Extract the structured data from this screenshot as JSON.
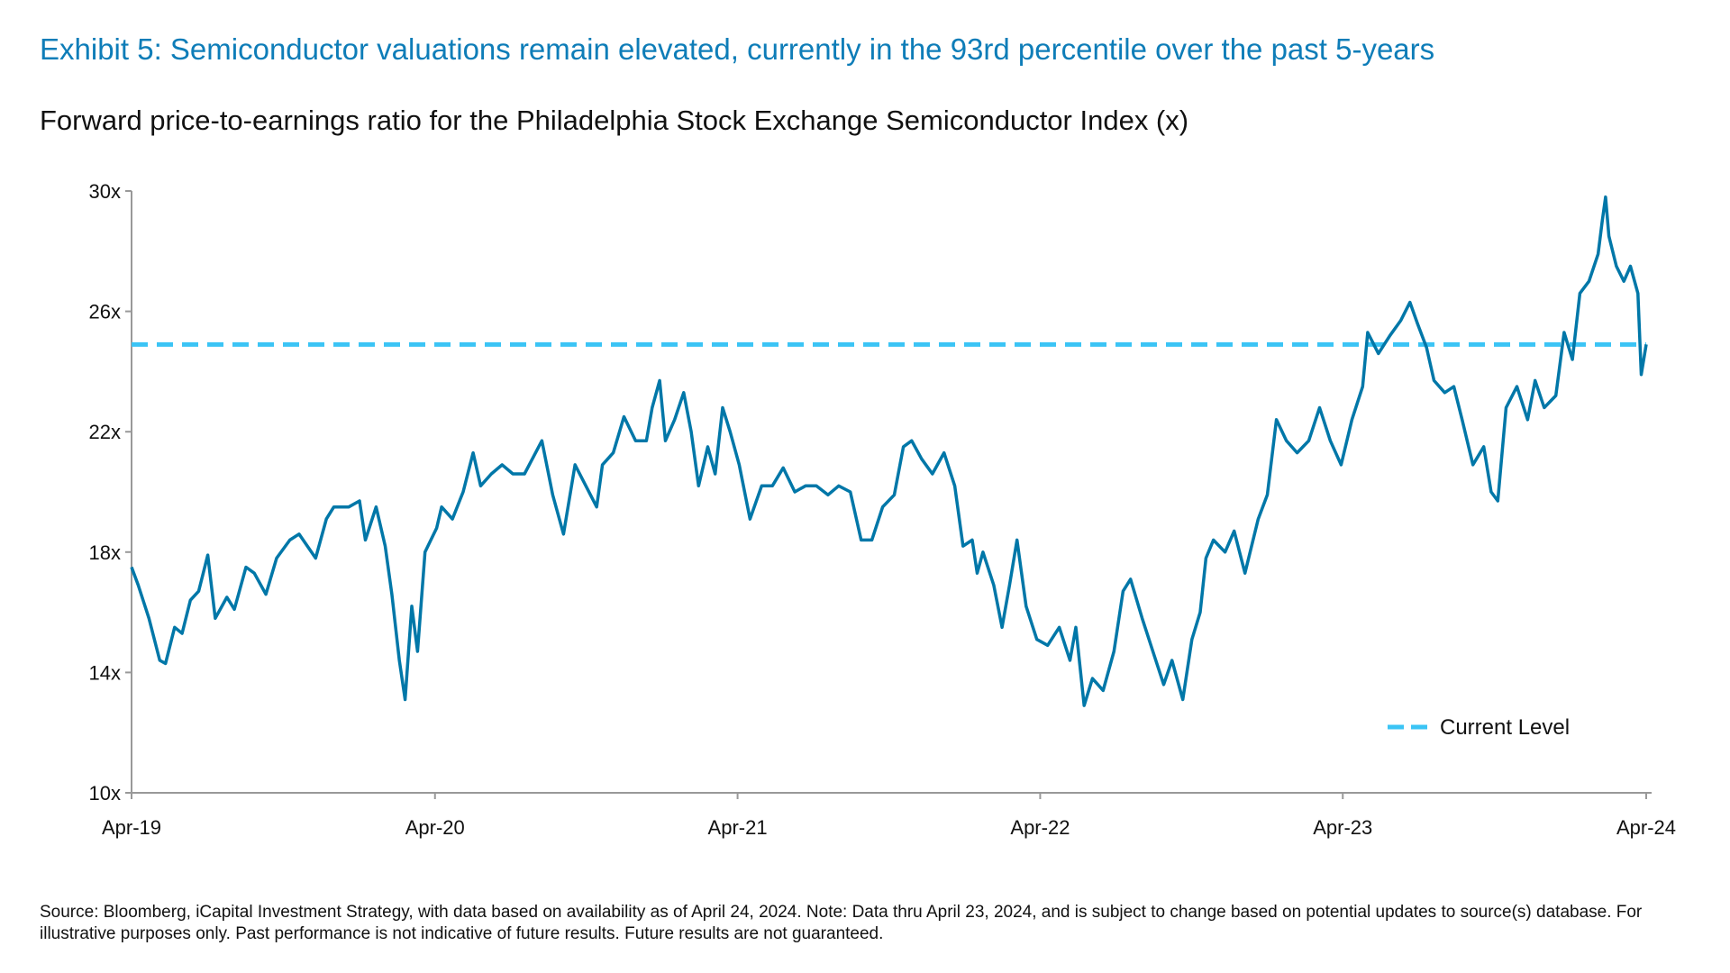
{
  "title": "Exhibit 5: Semiconductor valuations remain elevated, currently in the 93rd percentile over the past 5-years",
  "subtitle": "Forward price-to-earnings ratio for the Philadelphia Stock Exchange Semiconductor Index (x)",
  "footnote": "Source: Bloomberg, iCapital Investment Strategy, with data based on availability as of April 24, 2024. Note: Data thru April 23, 2024, and is subject to change based on potential updates to source(s) database. For illustrative purposes only. Past performance is not indicative of future results. Future results are not guaranteed.",
  "colors": {
    "title": "#0E7DB8",
    "series": "#0077A8",
    "current_level": "#3BC4F5"
  },
  "chart_data": {
    "type": "line",
    "title": "Forward price-to-earnings ratio for the Philadelphia Stock Exchange Semiconductor Index (x)",
    "xlabel": "",
    "ylabel": "",
    "xlim": [
      "2019-04-23",
      "2024-04-23"
    ],
    "ylim": [
      10,
      30
    ],
    "grid": false,
    "legend": "bottom-right",
    "x_ticks": [
      {
        "date": "2019-04-23",
        "label": "Apr-19"
      },
      {
        "date": "2020-04-23",
        "label": "Apr-20"
      },
      {
        "date": "2021-04-23",
        "label": "Apr-21"
      },
      {
        "date": "2022-04-23",
        "label": "Apr-22"
      },
      {
        "date": "2023-04-23",
        "label": "Apr-23"
      },
      {
        "date": "2024-04-23",
        "label": "Apr-24"
      }
    ],
    "y_ticks": [
      {
        "value": 10,
        "label": "10x"
      },
      {
        "value": 14,
        "label": "14x"
      },
      {
        "value": 18,
        "label": "18x"
      },
      {
        "value": 22,
        "label": "22x"
      },
      {
        "value": 26,
        "label": "26x"
      },
      {
        "value": 30,
        "label": "30x"
      }
    ],
    "reference_line": {
      "name": "Current Level",
      "value": 24.9,
      "style": "dashed"
    },
    "series": [
      {
        "x": [
          "2019-04-23",
          "2019-05-01",
          "2019-05-14",
          "2019-05-27",
          "2019-06-03",
          "2019-06-14",
          "2019-06-23",
          "2019-07-03",
          "2019-07-13",
          "2019-07-24",
          "2019-08-02",
          "2019-08-16",
          "2019-08-25",
          "2019-09-08",
          "2019-09-18",
          "2019-10-02",
          "2019-10-15",
          "2019-10-31",
          "2019-11-11",
          "2019-12-01",
          "2019-12-14",
          "2019-12-23",
          "2020-01-10",
          "2020-01-23",
          "2020-01-30",
          "2020-02-12",
          "2020-02-23",
          "2020-03-02",
          "2020-03-11",
          "2020-03-18",
          "2020-03-26",
          "2020-04-02",
          "2020-04-11",
          "2020-04-25",
          "2020-05-01",
          "2020-05-14",
          "2020-05-27",
          "2020-06-08",
          "2020-06-17",
          "2020-06-30",
          "2020-07-13",
          "2020-07-26",
          "2020-08-09",
          "2020-08-30",
          "2020-09-12",
          "2020-09-25",
          "2020-10-09",
          "2020-10-22",
          "2020-11-04",
          "2020-11-11",
          "2020-11-24",
          "2020-12-07",
          "2020-12-21",
          "2021-01-03",
          "2021-01-10",
          "2021-01-19",
          "2021-01-26",
          "2021-02-06",
          "2021-02-17",
          "2021-02-26",
          "2021-03-07",
          "2021-03-18",
          "2021-03-27",
          "2021-04-05",
          "2021-04-14",
          "2021-04-25",
          "2021-05-08",
          "2021-05-22",
          "2021-06-04",
          "2021-06-17",
          "2021-07-01",
          "2021-07-14",
          "2021-07-27",
          "2021-08-10",
          "2021-08-23",
          "2021-09-06",
          "2021-09-19",
          "2021-10-02",
          "2021-10-15",
          "2021-10-29",
          "2021-11-09",
          "2021-11-19",
          "2021-12-01",
          "2021-12-14",
          "2021-12-28",
          "2022-01-10",
          "2022-01-20",
          "2022-01-31",
          "2022-02-06",
          "2022-02-13",
          "2022-02-26",
          "2022-03-08",
          "2022-03-17",
          "2022-03-26",
          "2022-04-06",
          "2022-04-19",
          "2022-05-02",
          "2022-05-16",
          "2022-05-29",
          "2022-06-05",
          "2022-06-15",
          "2022-06-25",
          "2022-07-08",
          "2022-07-21",
          "2022-08-01",
          "2022-08-10",
          "2022-08-24",
          "2022-09-06",
          "2022-09-19",
          "2022-09-29",
          "2022-10-12",
          "2022-10-23",
          "2022-11-02",
          "2022-11-09",
          "2022-11-18",
          "2022-12-02",
          "2022-12-13",
          "2022-12-26",
          "2023-01-11",
          "2023-01-22",
          "2023-02-02",
          "2023-02-14",
          "2023-02-27",
          "2023-03-13",
          "2023-03-26",
          "2023-04-08",
          "2023-04-21",
          "2023-05-04",
          "2023-05-17",
          "2023-05-23",
          "2023-06-05",
          "2023-06-19",
          "2023-07-02",
          "2023-07-13",
          "2023-07-22",
          "2023-08-02",
          "2023-08-11",
          "2023-08-24",
          "2023-09-04",
          "2023-09-14",
          "2023-09-27",
          "2023-10-10",
          "2023-10-19",
          "2023-10-27",
          "2023-11-06",
          "2023-11-19",
          "2023-12-02",
          "2023-12-11",
          "2023-12-22",
          "2024-01-05",
          "2024-01-15",
          "2024-01-25",
          "2024-02-03",
          "2024-02-14",
          "2024-02-25",
          "2024-03-01",
          "2024-03-05",
          "2024-03-09",
          "2024-03-18",
          "2024-03-27",
          "2024-04-04",
          "2024-04-13",
          "2024-04-17",
          "2024-04-23"
        ],
        "y": [
          17.5,
          16.9,
          15.8,
          14.4,
          14.3,
          15.5,
          15.3,
          16.4,
          16.7,
          17.9,
          15.8,
          16.5,
          16.1,
          17.5,
          17.3,
          16.6,
          17.8,
          18.4,
          18.6,
          17.8,
          19.1,
          19.5,
          19.5,
          19.7,
          18.4,
          19.5,
          18.2,
          16.6,
          14.4,
          13.1,
          16.2,
          14.7,
          18.0,
          18.8,
          19.5,
          19.1,
          20.0,
          21.3,
          20.2,
          20.6,
          20.9,
          20.6,
          20.6,
          21.7,
          19.9,
          18.6,
          20.9,
          20.2,
          19.5,
          20.9,
          21.3,
          22.5,
          21.7,
          21.7,
          22.8,
          23.7,
          21.7,
          22.4,
          23.3,
          22.0,
          20.2,
          21.5,
          20.6,
          22.8,
          22.0,
          20.9,
          19.1,
          20.2,
          20.2,
          20.8,
          20.0,
          20.2,
          20.2,
          19.9,
          20.2,
          20.0,
          18.4,
          18.4,
          19.5,
          19.9,
          21.5,
          21.7,
          21.1,
          20.6,
          21.3,
          20.2,
          18.2,
          18.4,
          17.3,
          18.0,
          16.9,
          15.5,
          16.9,
          18.4,
          16.2,
          15.1,
          14.9,
          15.5,
          14.4,
          15.5,
          12.9,
          13.8,
          13.4,
          14.7,
          16.7,
          17.1,
          15.8,
          14.7,
          13.6,
          14.4,
          13.1,
          15.1,
          16.0,
          17.8,
          18.4,
          18.0,
          18.7,
          17.3,
          19.1,
          19.9,
          22.4,
          21.7,
          21.3,
          21.7,
          22.8,
          21.7,
          20.9,
          22.4,
          23.5,
          25.3,
          24.6,
          25.2,
          25.7,
          26.3,
          25.6,
          24.8,
          23.7,
          23.3,
          23.5,
          22.4,
          20.9,
          21.5,
          20.0,
          19.7,
          22.8,
          23.5,
          22.4,
          23.7,
          22.8,
          23.2,
          25.3,
          24.4,
          26.6,
          27.0,
          27.9,
          29.0,
          29.8,
          28.5,
          27.5,
          27.0,
          27.5,
          26.6,
          23.9,
          24.9
        ]
      }
    ]
  }
}
